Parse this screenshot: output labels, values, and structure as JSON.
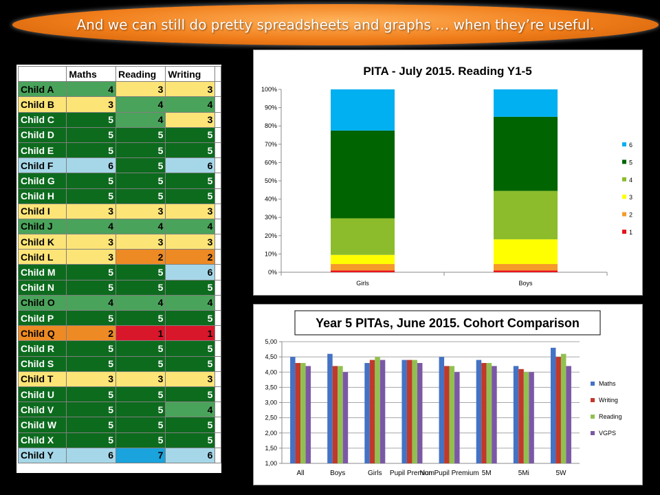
{
  "banner": {
    "text": "And we can still do pretty spreadsheets and graphs … when they’re useful."
  },
  "grid": {
    "headers": [
      "Maths",
      "Reading",
      "Writing"
    ],
    "rows": [
      {
        "name": "Child A",
        "values": [
          4,
          3,
          3
        ]
      },
      {
        "name": "Child B",
        "values": [
          3,
          4,
          4
        ]
      },
      {
        "name": "Child C",
        "values": [
          5,
          4,
          3
        ]
      },
      {
        "name": "Child D",
        "values": [
          5,
          5,
          5
        ]
      },
      {
        "name": "Child E",
        "values": [
          5,
          5,
          5
        ]
      },
      {
        "name": "Child F",
        "values": [
          6,
          5,
          6
        ]
      },
      {
        "name": "Child G",
        "values": [
          5,
          5,
          5
        ]
      },
      {
        "name": "Child H",
        "values": [
          5,
          5,
          5
        ]
      },
      {
        "name": "Child I",
        "values": [
          3,
          3,
          3
        ]
      },
      {
        "name": "Child J",
        "values": [
          4,
          4,
          4
        ]
      },
      {
        "name": "Child K",
        "values": [
          3,
          3,
          3
        ]
      },
      {
        "name": "Child L",
        "values": [
          3,
          2,
          2
        ]
      },
      {
        "name": "Child M",
        "values": [
          5,
          5,
          6
        ]
      },
      {
        "name": "Child N",
        "values": [
          5,
          5,
          5
        ]
      },
      {
        "name": "Child O",
        "values": [
          4,
          4,
          4
        ]
      },
      {
        "name": "Child P",
        "values": [
          5,
          5,
          5
        ]
      },
      {
        "name": "Child Q",
        "values": [
          2,
          1,
          1
        ]
      },
      {
        "name": "Child R",
        "values": [
          5,
          5,
          5
        ]
      },
      {
        "name": "Child S",
        "values": [
          5,
          5,
          5
        ]
      },
      {
        "name": "Child T",
        "values": [
          3,
          3,
          3
        ]
      },
      {
        "name": "Child U",
        "values": [
          5,
          5,
          5
        ]
      },
      {
        "name": "Child V",
        "values": [
          5,
          5,
          4
        ]
      },
      {
        "name": "Child W",
        "values": [
          5,
          5,
          5
        ]
      },
      {
        "name": "Child X",
        "values": [
          5,
          5,
          5
        ]
      },
      {
        "name": "Child Y",
        "values": [
          6,
          7,
          6
        ]
      }
    ],
    "level_colors": {
      "1": "#d9172b",
      "2": "#ed8a24",
      "3": "#fce477",
      "4": "#4aa35a",
      "5": "#0d6b1e",
      "6": "#a6d7e8",
      "7": "#1aa3dc"
    },
    "level_text_colors": {
      "1": "#000000",
      "2": "#000000",
      "3": "#000000",
      "4": "#000000",
      "5": "#ffffff",
      "6": "#000000",
      "7": "#000000"
    }
  },
  "chart_data": [
    {
      "type": "bar",
      "stacked": true,
      "percent": true,
      "title": "PITA - July 2015. Reading Y1-5",
      "categories": [
        "Girls",
        "Boys"
      ],
      "yticks": [
        "0%",
        "10%",
        "20%",
        "30%",
        "40%",
        "50%",
        "60%",
        "70%",
        "80%",
        "90%",
        "100%"
      ],
      "ylim": [
        0,
        100
      ],
      "legend_position": "right",
      "series": [
        {
          "name": "1",
          "color": "#e8141c",
          "values": [
            1,
            1
          ]
        },
        {
          "name": "2",
          "color": "#f59b2a",
          "values": [
            3.5,
            3.5
          ]
        },
        {
          "name": "3",
          "color": "#ffff00",
          "values": [
            5,
            13.5
          ]
        },
        {
          "name": "4",
          "color": "#8cbc2c",
          "values": [
            20,
            26.5
          ]
        },
        {
          "name": "5",
          "color": "#006400",
          "values": [
            48,
            40.5
          ]
        },
        {
          "name": "6",
          "color": "#00b0f0",
          "values": [
            22.5,
            15
          ]
        }
      ]
    },
    {
      "type": "bar",
      "title": "Year 5 PITAs, June 2015. Cohort Comparison",
      "categories": [
        "All",
        "Boys",
        "Girls",
        "Pupil Premium",
        "Non Pupil Premium",
        "5M",
        "5Mi",
        "5W"
      ],
      "yticks": [
        "1,00",
        "1,50",
        "2,00",
        "2,50",
        "3,00",
        "3,50",
        "4,00",
        "4,50",
        "5,00"
      ],
      "ylim": [
        1,
        5
      ],
      "legend_position": "right",
      "series": [
        {
          "name": "Maths",
          "color": "#4472c4",
          "values": [
            4.5,
            4.6,
            4.3,
            4.4,
            4.5,
            4.4,
            4.2,
            4.8
          ]
        },
        {
          "name": "Writing",
          "color": "#c0392b",
          "values": [
            4.3,
            4.2,
            4.4,
            4.4,
            4.2,
            4.3,
            4.1,
            4.5
          ]
        },
        {
          "name": "Reading",
          "color": "#92c050",
          "values": [
            4.3,
            4.2,
            4.5,
            4.4,
            4.2,
            4.3,
            4.0,
            4.6
          ]
        },
        {
          "name": "VGPS",
          "color": "#7b58a6",
          "values": [
            4.2,
            4.0,
            4.4,
            4.3,
            4.0,
            4.2,
            4.0,
            4.2
          ]
        }
      ]
    }
  ]
}
